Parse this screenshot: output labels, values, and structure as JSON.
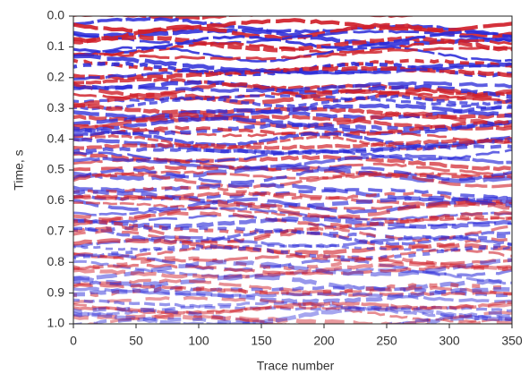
{
  "chart_data": {
    "type": "seismic-section",
    "xlabel": "Trace number",
    "ylabel": "Time, s",
    "xlim": [
      0,
      350
    ],
    "xticks": [
      0,
      50,
      100,
      150,
      200,
      250,
      300,
      350
    ],
    "ylim": [
      1,
      0
    ],
    "yticks": [
      {
        "value": 0,
        "label": "0.0"
      },
      0.1,
      0.2,
      0.3,
      0.4,
      0.5,
      0.6,
      0.7,
      0.8,
      0.9,
      {
        "value": 1,
        "label": "1.0"
      }
    ],
    "positive_color": "#d0202a",
    "negative_color": "#2a2ad8"
  }
}
